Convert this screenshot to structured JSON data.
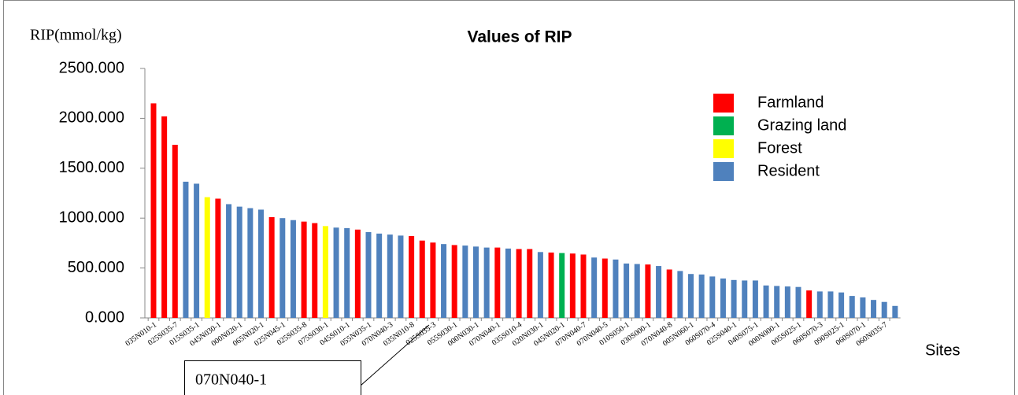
{
  "chart_data": {
    "type": "bar",
    "title": "Values of RIP",
    "y_label": "RIP(mmol/kg)",
    "x_label": "Sites",
    "annotation": "070N040-1",
    "categories": [
      "035N010-1",
      null,
      "025S035-7",
      null,
      "015S035-1",
      null,
      "045N030-1",
      null,
      "000N020-1",
      null,
      "065N020-1",
      null,
      "025N045-1",
      null,
      "025S035-8",
      null,
      "075S030-1",
      null,
      "045S010-1",
      null,
      "055N035-1",
      null,
      "070N040-3",
      null,
      "035N010-8",
      null,
      "025S035-3",
      null,
      "055S030-1",
      null,
      "000N030-1",
      null,
      "070N040-1",
      null,
      "035S010-4",
      null,
      "020N030-1",
      null,
      "045N020-1",
      null,
      "070N040-7",
      null,
      "070N040-5",
      null,
      "010S050-1",
      null,
      "030S000-1",
      null,
      "070N040-8",
      null,
      "005N060-1",
      null,
      "060S070-4",
      null,
      "025S040-1",
      null,
      "040S075-1",
      null,
      "000N000-1",
      null,
      "005S025-1",
      null,
      "060S070-3",
      null,
      "090S025-1",
      null,
      "060S070-1",
      null,
      "060N035-7",
      null
    ],
    "values": [
      2150,
      2020,
      1735,
      1365,
      1345,
      1210,
      1195,
      1140,
      1115,
      1100,
      1085,
      1010,
      1000,
      980,
      965,
      950,
      920,
      905,
      900,
      885,
      860,
      845,
      835,
      825,
      820,
      775,
      755,
      740,
      730,
      725,
      715,
      705,
      705,
      695,
      690,
      690,
      660,
      655,
      650,
      645,
      635,
      605,
      595,
      585,
      545,
      540,
      535,
      520,
      485,
      470,
      440,
      435,
      415,
      395,
      380,
      375,
      375,
      325,
      320,
      315,
      310,
      275,
      265,
      265,
      255,
      220,
      205,
      180,
      160,
      120
    ],
    "bar_colors": [
      "#ff0000",
      "#ff0000",
      "#ff0000",
      "#4f81bd",
      "#4f81bd",
      "#ffff00",
      "#ff0000",
      "#4f81bd",
      "#4f81bd",
      "#4f81bd",
      "#4f81bd",
      "#ff0000",
      "#4f81bd",
      "#4f81bd",
      "#ff0000",
      "#ff0000",
      "#ffff00",
      "#4f81bd",
      "#4f81bd",
      "#ff0000",
      "#4f81bd",
      "#4f81bd",
      "#4f81bd",
      "#4f81bd",
      "#ff0000",
      "#ff0000",
      "#ff0000",
      "#4f81bd",
      "#ff0000",
      "#4f81bd",
      "#4f81bd",
      "#4f81bd",
      "#ff0000",
      "#4f81bd",
      "#ff0000",
      "#ff0000",
      "#4f81bd",
      "#ff0000",
      "#00b050",
      "#ff0000",
      "#ff0000",
      "#4f81bd",
      "#ff0000",
      "#4f81bd",
      "#4f81bd",
      "#4f81bd",
      "#ff0000",
      "#4f81bd",
      "#ff0000",
      "#4f81bd",
      "#4f81bd",
      "#4f81bd",
      "#4f81bd",
      "#4f81bd",
      "#4f81bd",
      "#4f81bd",
      "#4f81bd",
      "#4f81bd",
      "#4f81bd",
      "#4f81bd",
      "#4f81bd",
      "#ff0000",
      "#4f81bd",
      "#4f81bd",
      "#4f81bd",
      "#4f81bd",
      "#4f81bd",
      "#4f81bd",
      "#4f81bd",
      "#4f81bd"
    ],
    "legend": [
      {
        "name": "Farmland",
        "color": "#ff0000"
      },
      {
        "name": "Grazing land",
        "color": "#00b050"
      },
      {
        "name": "Forest",
        "color": "#ffff00"
      },
      {
        "name": "Resident",
        "color": "#4f81bd"
      }
    ],
    "ylim": [
      0,
      2500
    ],
    "yticks": [
      {
        "value": 0,
        "label": "0.000"
      },
      {
        "value": 500,
        "label": "500.000"
      },
      {
        "value": 1000,
        "label": "1000.000"
      },
      {
        "value": 1500,
        "label": "1500.000"
      },
      {
        "value": 2000,
        "label": "2000.000"
      },
      {
        "value": 2500,
        "label": "2500.000"
      }
    ],
    "grid": false
  }
}
